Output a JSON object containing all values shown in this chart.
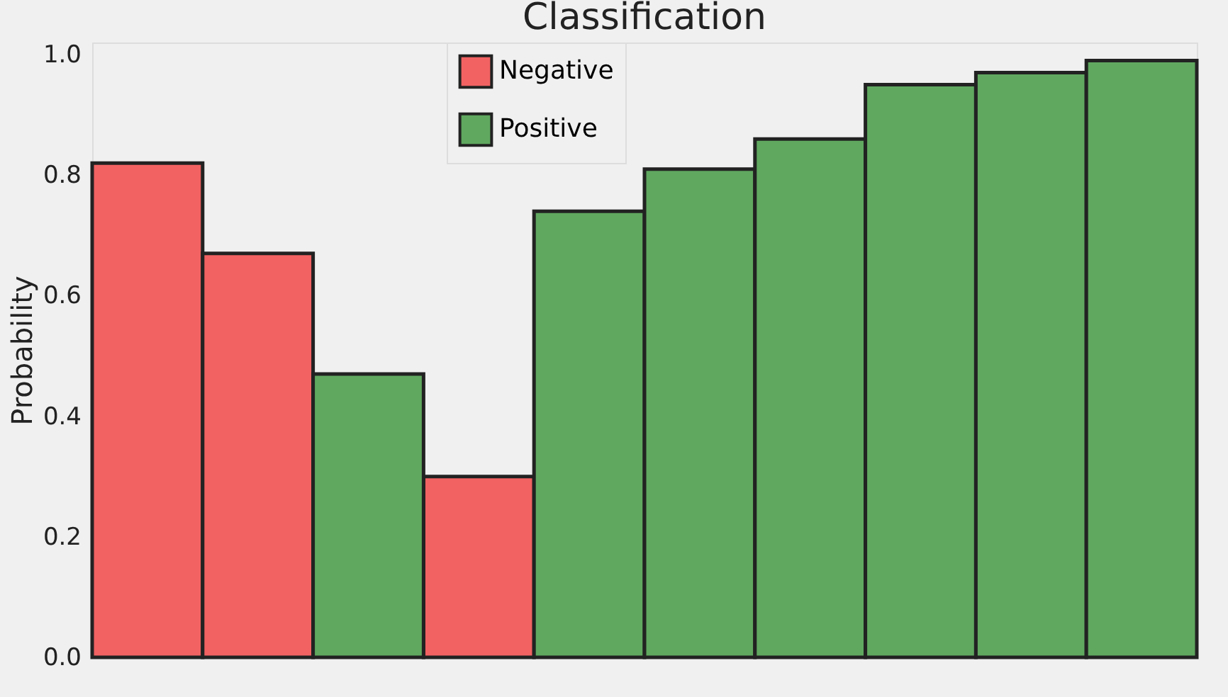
{
  "chart_data": {
    "type": "bar",
    "title": "Classification",
    "ylabel": "Probability",
    "categories": [
      null,
      null,
      null,
      null,
      null,
      null,
      null,
      null,
      null,
      null
    ],
    "series": [
      {
        "name": "Negative",
        "color": "#f26262",
        "values": [
          0.82,
          0.67,
          null,
          0.3,
          null,
          null,
          null,
          null,
          null,
          null
        ]
      },
      {
        "name": "Positive",
        "color": "#60a860",
        "values": [
          null,
          null,
          0.47,
          null,
          0.74,
          0.81,
          0.86,
          0.95,
          0.97,
          0.99
        ]
      }
    ],
    "ylim": [
      0,
      1.02
    ],
    "yticks": [
      {
        "value": 0,
        "label": "0.0"
      },
      {
        "value": 0.2,
        "label": "0.2"
      },
      {
        "value": 0.4,
        "label": "0.4"
      },
      {
        "value": 0.6,
        "label": "0.6"
      },
      {
        "value": 0.8,
        "label": "0.8"
      },
      {
        "value": 1,
        "label": "1.0"
      }
    ],
    "stacked": true,
    "grid": false,
    "legend": "top",
    "tick_labels": "y"
  }
}
